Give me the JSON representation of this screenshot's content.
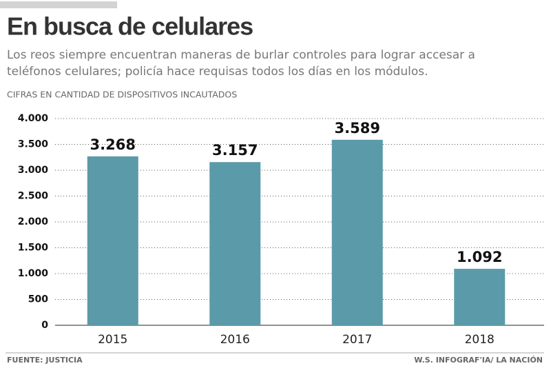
{
  "chart_data": {
    "type": "bar",
    "title": "En busca de celulares",
    "subtitle": [
      "Los reos siempre encuentran maneras de burlar controles para lograr accesar a",
      "teléfonos celulares; policía hace requisas todos los días en los módulos."
    ],
    "y_label": "CIFRAS EN CANTIDAD DE DISPOSITIVOS INCAUTADOS",
    "categories": [
      "2015",
      "2016",
      "2017",
      "2018"
    ],
    "values": [
      3268,
      3157,
      3589,
      1092
    ],
    "value_labels": [
      "3.268",
      "3.157",
      "3.589",
      "1.092"
    ],
    "color": "#5b9aa9",
    "ylim": [
      0,
      4000
    ],
    "yticks": [
      0,
      500,
      {
        "value": 1000,
        "label": "1.000"
      },
      {
        "value": 1500,
        "label": "1.500"
      },
      {
        "value": 2000,
        "label": "2.000"
      },
      {
        "value": 2500,
        "label": "2.500"
      },
      {
        "value": 3000,
        "label": "3.000"
      },
      {
        "value": 3500,
        "label": "3.500"
      },
      {
        "value": 4000,
        "label": "4.000"
      }
    ],
    "grid": true,
    "source": "FUENTE: JUSTICIA",
    "credit": "W.S. INFOGRAF'IA/ LA NACIÓN"
  }
}
